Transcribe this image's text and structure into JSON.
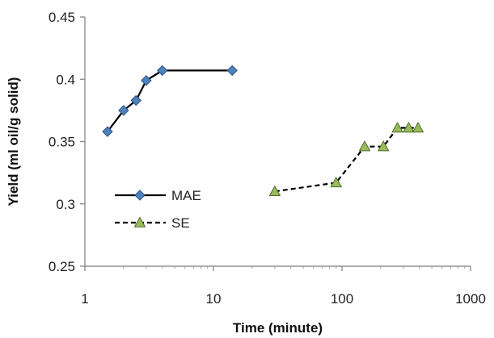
{
  "chart_data": {
    "type": "scatter",
    "title": "",
    "xlabel": "Time (minute)",
    "ylabel": "Yield (ml oil/g solid)",
    "x_scale": "log",
    "xlim": [
      1,
      1000
    ],
    "ylim": [
      0.25,
      0.45
    ],
    "x_ticks": [
      "1",
      "10",
      "100",
      "1000"
    ],
    "y_ticks": [
      "0.25",
      "0.3",
      "0.35",
      "0.4",
      "0.45"
    ],
    "grid": false,
    "legend_position": "lower-left",
    "series": [
      {
        "name": "MAE",
        "marker": "diamond",
        "line": "solid",
        "color": "#4f81bd",
        "x": [
          1.5,
          2,
          2.5,
          3,
          4,
          14
        ],
        "y": [
          0.358,
          0.375,
          0.383,
          0.399,
          0.407,
          0.407
        ]
      },
      {
        "name": "SE",
        "marker": "triangle",
        "line": "dashed",
        "color": "#9bbb59",
        "x": [
          30,
          90,
          150,
          210,
          270,
          330,
          390
        ],
        "y": [
          0.31,
          0.317,
          0.346,
          0.346,
          0.361,
          0.361,
          0.361
        ]
      }
    ]
  }
}
